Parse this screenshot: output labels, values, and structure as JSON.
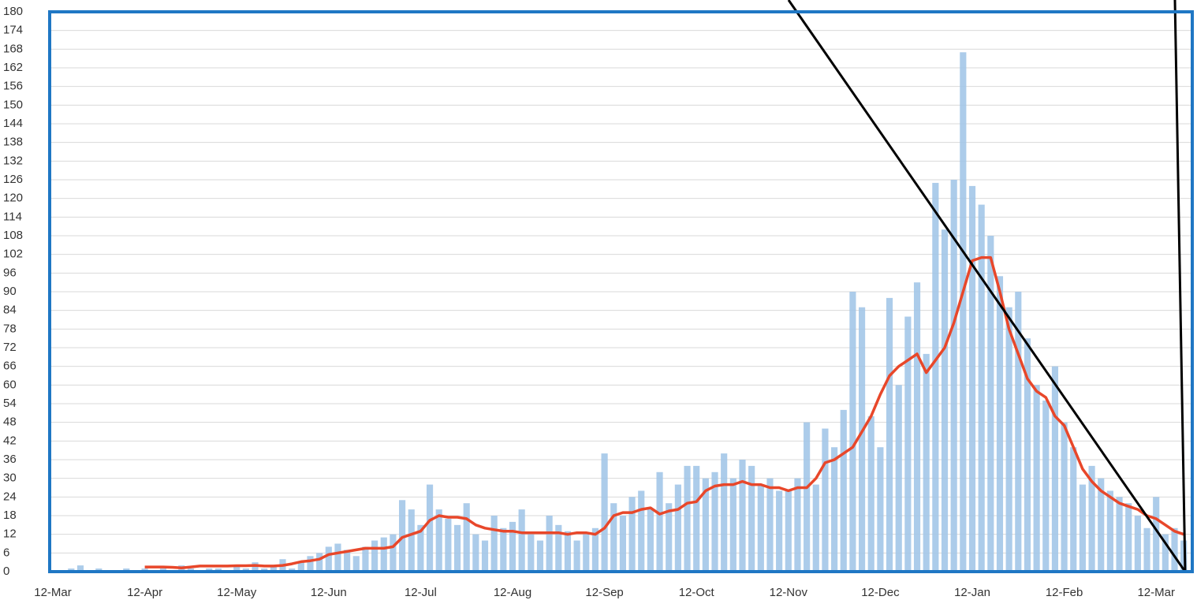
{
  "chart_data": {
    "type": "combo",
    "categories": [
      "12-Mar",
      null,
      null,
      null,
      null,
      null,
      null,
      null,
      null,
      null,
      "12-Apr",
      null,
      null,
      null,
      null,
      null,
      null,
      null,
      null,
      null,
      "12-May",
      null,
      null,
      null,
      null,
      null,
      null,
      null,
      null,
      null,
      "12-Jun",
      null,
      null,
      null,
      null,
      null,
      null,
      null,
      null,
      null,
      "12-Jul",
      null,
      null,
      null,
      null,
      null,
      null,
      null,
      null,
      null,
      "12-Aug",
      null,
      null,
      null,
      null,
      null,
      null,
      null,
      null,
      null,
      "12-Sep",
      null,
      null,
      null,
      null,
      null,
      null,
      null,
      null,
      null,
      "12-Oct",
      null,
      null,
      null,
      null,
      null,
      null,
      null,
      null,
      null,
      "12-Nov",
      null,
      null,
      null,
      null,
      null,
      null,
      null,
      null,
      null,
      "12-Dec",
      null,
      null,
      null,
      null,
      null,
      null,
      null,
      null,
      null,
      "12-Jan",
      null,
      null,
      null,
      null,
      null,
      null,
      null,
      null,
      null,
      "12-Feb",
      null,
      null,
      null,
      null,
      null,
      null,
      null,
      null,
      null,
      "12-Mar",
      null,
      null,
      null
    ],
    "series": [
      {
        "type": "bar",
        "color": "#9dc3e6",
        "values": [
          0,
          0,
          1,
          2,
          0,
          1,
          0,
          0,
          1,
          0,
          1,
          0,
          1,
          0,
          2,
          1,
          0,
          1,
          1,
          0,
          2,
          1,
          3,
          1,
          2,
          4,
          1,
          3,
          5,
          6,
          8,
          9,
          7,
          5,
          8,
          10,
          11,
          12,
          23,
          20,
          15,
          28,
          20,
          17,
          15,
          22,
          12,
          10,
          18,
          14,
          16,
          20,
          12,
          10,
          18,
          15,
          13,
          10,
          12,
          14,
          38,
          22,
          18,
          24,
          26,
          20,
          32,
          22,
          28,
          34,
          34,
          30,
          32,
          38,
          30,
          36,
          34,
          28,
          30,
          26,
          26,
          30,
          48,
          28,
          46,
          40,
          52,
          90,
          85,
          50,
          40,
          88,
          60,
          82,
          93,
          70,
          125,
          110,
          126,
          167,
          124,
          118,
          108,
          95,
          85,
          90,
          75,
          60,
          55,
          66,
          48,
          40,
          28,
          34,
          30,
          26,
          24,
          22,
          18,
          14,
          24,
          12,
          14,
          10
        ]
      },
      {
        "type": "line",
        "color": "#e8472a",
        "values": [
          null,
          null,
          null,
          null,
          null,
          null,
          null,
          null,
          null,
          null,
          1.5,
          1.5,
          1.5,
          1.4,
          1.2,
          1.5,
          1.8,
          1.8,
          1.8,
          1.8,
          1.9,
          1.9,
          2,
          1.8,
          1.8,
          2,
          2.5,
          3.2,
          3.5,
          4,
          5.5,
          6,
          6.5,
          7,
          7.5,
          7.5,
          7.5,
          8,
          11,
          12,
          13,
          16.5,
          18,
          17.5,
          17.5,
          17,
          15,
          14,
          13.5,
          13,
          13,
          12.5,
          12.5,
          12.5,
          12.5,
          12.5,
          12,
          12.5,
          12.5,
          12,
          14,
          18,
          19,
          19,
          20,
          20.5,
          18.5,
          19.5,
          20,
          22,
          22.5,
          26,
          27.5,
          28,
          28,
          29,
          28,
          28,
          27,
          27,
          26,
          27,
          27,
          30,
          35,
          36,
          38,
          40,
          45,
          50,
          57,
          63,
          66,
          68,
          70,
          64,
          68,
          72,
          80,
          90,
          100,
          101,
          101,
          90,
          78,
          70,
          62,
          58,
          56,
          50,
          47,
          40,
          33,
          29,
          26,
          24,
          22,
          21,
          20,
          18,
          17,
          15,
          13,
          12
        ]
      }
    ],
    "ylim": [
      0,
      180
    ],
    "yticks": [
      0,
      6,
      12,
      18,
      24,
      30,
      36,
      42,
      48,
      54,
      60,
      66,
      72,
      78,
      84,
      90,
      96,
      102,
      108,
      114,
      120,
      126,
      132,
      138,
      144,
      150,
      156,
      162,
      168,
      174,
      180
    ],
    "grid": true
  }
}
